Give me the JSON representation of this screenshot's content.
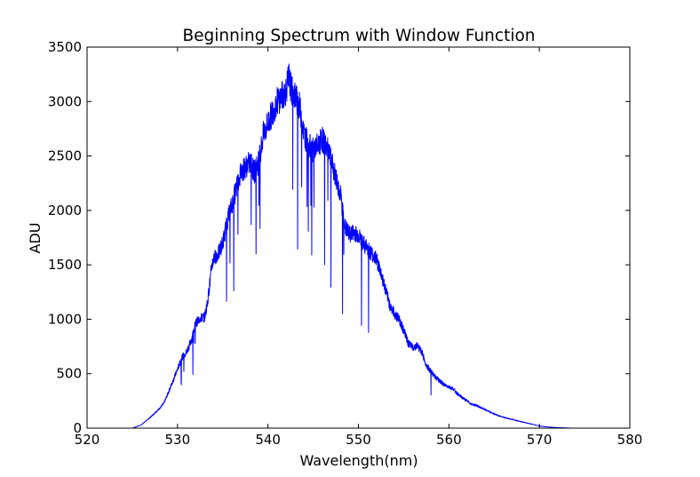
{
  "chart_data": {
    "type": "line",
    "title": "Beginning Spectrum with Window Function",
    "xlabel": "Wavelength(nm)",
    "ylabel": "ADU",
    "xlim": [
      520,
      580
    ],
    "ylim": [
      0,
      3500
    ],
    "xticks": [
      520,
      530,
      540,
      550,
      560,
      570,
      580
    ],
    "yticks": [
      0,
      500,
      1000,
      1500,
      2000,
      2500,
      3000,
      3500
    ],
    "grid": false,
    "color": "#0000ff",
    "series": [
      {
        "x": [
          525,
          526,
          527,
          528,
          528.5,
          529,
          530,
          530.5,
          531,
          531.5,
          532,
          532.5,
          533,
          533.3,
          533.6,
          533.8,
          534,
          534.5,
          535,
          535.5,
          536,
          536.5,
          537,
          537.5,
          538,
          538.5,
          539,
          539.5,
          540,
          540.5,
          541,
          541.5,
          542,
          542.3,
          542.6,
          543,
          543.5,
          544,
          544.5,
          545,
          545.5,
          546,
          546.5,
          547,
          547.5,
          548,
          548.5,
          549,
          549.5,
          550,
          550.5,
          551,
          551.5,
          552,
          552.5,
          553,
          553.5,
          554,
          554.5,
          555,
          555.5,
          556,
          556.5,
          557,
          557.5,
          558,
          558.5,
          559,
          559.5,
          560,
          560.5,
          561,
          561.5,
          562,
          562.5,
          563,
          563.5,
          564,
          565,
          566,
          567,
          568,
          569,
          570,
          571,
          572,
          573,
          573.5
        ],
        "y": [
          0,
          30,
          100,
          180,
          230,
          330,
          540,
          650,
          700,
          800,
          960,
          1010,
          1020,
          1150,
          1350,
          1500,
          1560,
          1600,
          1700,
          1900,
          2050,
          2200,
          2350,
          2400,
          2440,
          2350,
          2450,
          2700,
          2800,
          2900,
          3000,
          3050,
          3100,
          3230,
          3100,
          3050,
          2950,
          2700,
          2600,
          2550,
          2600,
          2650,
          2580,
          2450,
          2300,
          2150,
          1850,
          1780,
          1800,
          1770,
          1700,
          1650,
          1600,
          1550,
          1420,
          1270,
          1120,
          1050,
          1000,
          900,
          780,
          740,
          760,
          700,
          580,
          520,
          470,
          430,
          400,
          380,
          360,
          310,
          280,
          250,
          220,
          210,
          190,
          170,
          130,
          100,
          80,
          60,
          40,
          20,
          10,
          5,
          2,
          0
        ]
      }
    ]
  }
}
